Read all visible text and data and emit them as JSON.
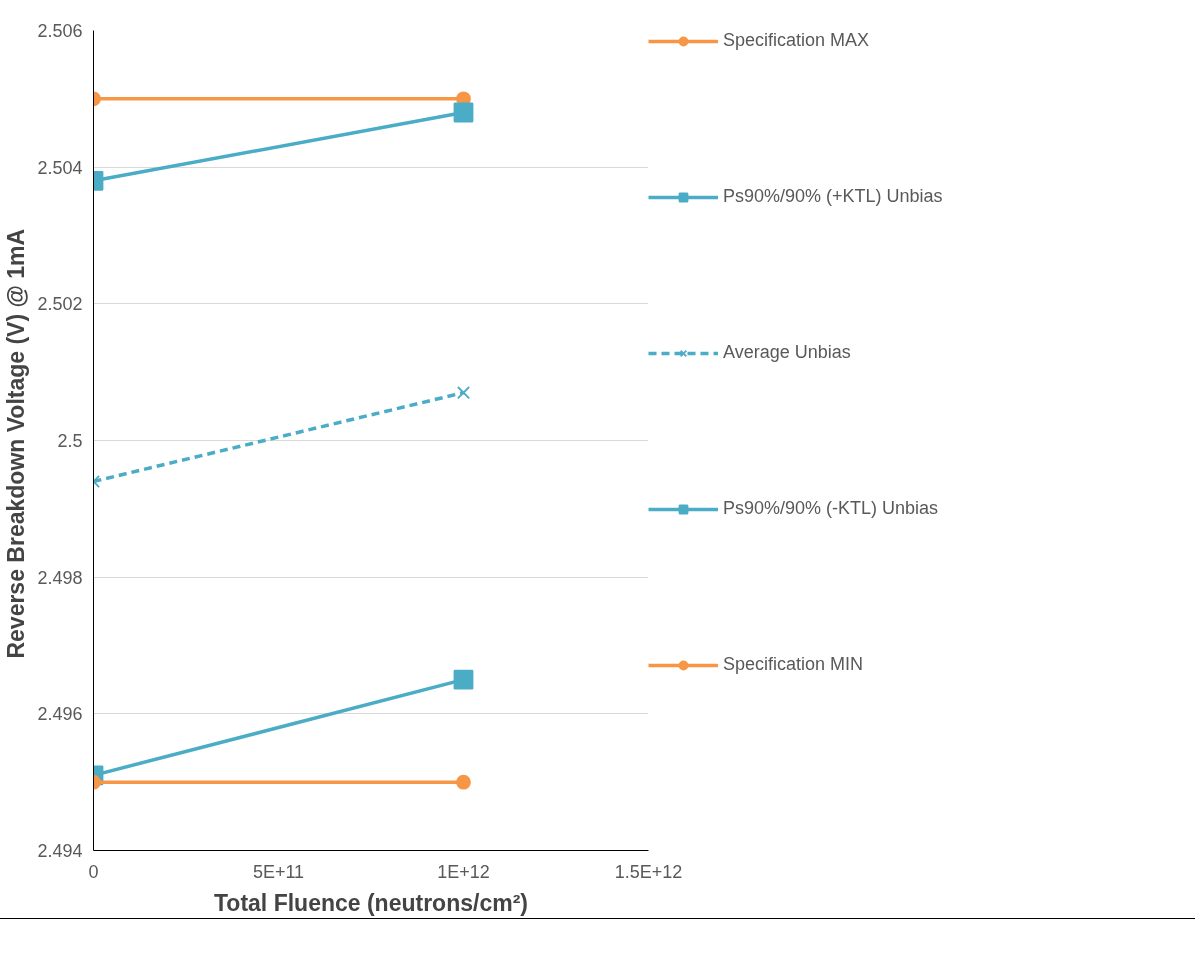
{
  "chart_data": {
    "type": "line",
    "xlabel": "Total Fluence (neutrons/cm²)",
    "ylabel": "Reverse Breakdown Voltage  (V) @ 1mA",
    "x": [
      0,
      1000000000000
    ],
    "series": [
      {
        "name": "Specification MAX",
        "color": "#f79646",
        "values": [
          2.505,
          2.505
        ],
        "marker": "circle",
        "line_style": "solid"
      },
      {
        "name": "Ps90%/90% (+KTL) Unbias",
        "color": "#4bacc6",
        "values": [
          2.5038,
          2.5048
        ],
        "marker": "square",
        "line_style": "solid"
      },
      {
        "name": "Average Unbias",
        "color": "#4bacc6",
        "values": [
          2.4994,
          2.5007
        ],
        "marker": "cross",
        "line_style": "dashed"
      },
      {
        "name": "Ps90%/90% (-KTL) Unbias",
        "color": "#4bacc6",
        "values": [
          2.4951,
          2.4965
        ],
        "marker": "square",
        "line_style": "solid"
      },
      {
        "name": "Specification MIN",
        "color": "#f79646",
        "values": [
          2.495,
          2.495
        ],
        "marker": "circle",
        "line_style": "solid"
      }
    ],
    "xlim": [
      0,
      1500000000000
    ],
    "xticks": [
      0,
      {
        "value": 500000000000,
        "label": "5E+11"
      },
      {
        "value": 1000000000000,
        "label": "1E+12"
      },
      {
        "value": 1500000000000,
        "label": "1.5E+12"
      }
    ],
    "ylim": [
      2.494,
      2.506
    ],
    "yticks": [
      2.494,
      2.496,
      2.498,
      {
        "value": 2.5,
        "label": "2.5"
      },
      2.502,
      2.504,
      2.506
    ],
    "grid": "y",
    "legend": "right"
  }
}
